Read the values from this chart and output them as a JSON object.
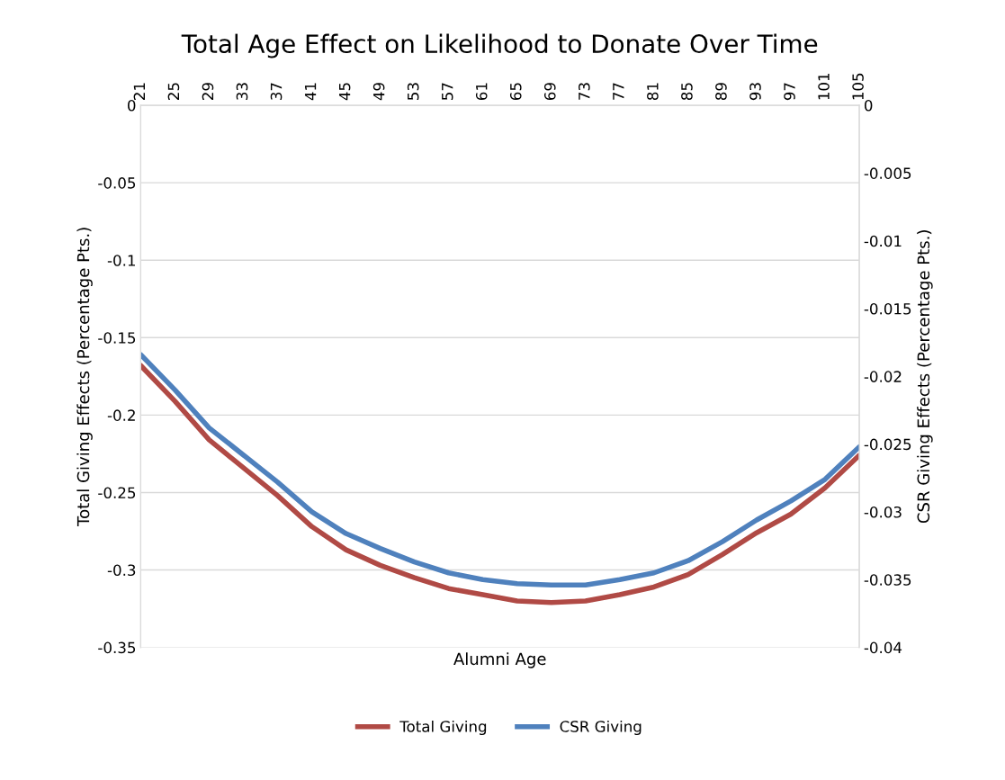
{
  "chart_data": {
    "type": "line",
    "title": "Total Age Effect on Likelihood to Donate Over Time",
    "xlabel": "Alumni Age",
    "ylabel": "Total Giving Effects (Percentage Pts.)",
    "y2label": "CSR Giving Effects (Percentage Pts.)",
    "x": [
      21,
      25,
      29,
      33,
      37,
      41,
      45,
      49,
      53,
      57,
      61,
      65,
      69,
      73,
      77,
      81,
      85,
      89,
      93,
      97,
      101,
      105
    ],
    "xlim": [
      21,
      105
    ],
    "xticks": [
      21,
      25,
      29,
      33,
      37,
      41,
      45,
      49,
      53,
      57,
      61,
      65,
      69,
      73,
      77,
      81,
      85,
      89,
      93,
      97,
      101,
      105
    ],
    "ylim": [
      -0.35,
      0
    ],
    "yticks": [
      -0.35,
      -0.3,
      -0.25,
      -0.2,
      -0.15,
      -0.1,
      -0.05,
      0
    ],
    "y2lim": [
      -0.04,
      0
    ],
    "y2ticks": [
      -0.04,
      -0.035,
      -0.03,
      -0.025,
      -0.02,
      -0.015,
      -0.01,
      -0.005,
      0
    ],
    "series": [
      {
        "name": "Total Giving",
        "color": "#b04a45",
        "values": [
          -0.168,
          -0.191,
          -0.216,
          -0.234,
          -0.252,
          -0.272,
          -0.287,
          -0.297,
          -0.305,
          -0.312,
          -0.316,
          -0.32,
          -0.321,
          -0.32,
          -0.316,
          -0.311,
          -0.303,
          -0.29,
          -0.276,
          -0.264,
          -0.247,
          -0.226
        ]
      },
      {
        "name": "CSR Giving",
        "color": "#4f81bd",
        "axis": "y2",
        "values": [
          -0.0184,
          -0.021,
          -0.0238,
          -0.0258,
          -0.0278,
          -0.03,
          -0.0316,
          -0.0327,
          -0.0337,
          -0.0345,
          -0.035,
          -0.0353,
          -0.0354,
          -0.0354,
          -0.035,
          -0.0345,
          -0.0336,
          -0.0322,
          -0.0306,
          -0.0292,
          -0.0276,
          -0.0252
        ]
      }
    ],
    "grid": "y",
    "legend": "bottom",
    "marker": "none",
    "line_style": "solid"
  }
}
